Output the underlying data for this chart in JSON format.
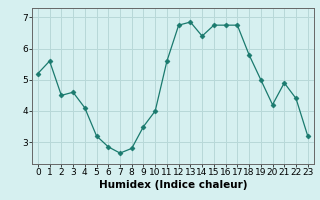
{
  "x": [
    0,
    1,
    2,
    3,
    4,
    5,
    6,
    7,
    8,
    9,
    10,
    11,
    12,
    13,
    14,
    15,
    16,
    17,
    18,
    19,
    20,
    21,
    22,
    23
  ],
  "y": [
    5.2,
    5.6,
    4.5,
    4.6,
    4.1,
    3.2,
    2.85,
    2.65,
    2.8,
    3.5,
    4.0,
    5.6,
    6.75,
    6.85,
    6.4,
    6.75,
    6.75,
    6.75,
    5.8,
    5.0,
    4.2,
    4.9,
    4.4,
    3.2
  ],
  "line_color": "#1a7a6e",
  "marker": "D",
  "marker_size": 2.5,
  "bg_color": "#d6f0f0",
  "grid_color": "#b8d8d8",
  "xlabel": "Humidex (Indice chaleur)",
  "xlim": [
    -0.5,
    23.5
  ],
  "ylim": [
    2.3,
    7.3
  ],
  "yticks": [
    3,
    4,
    5,
    6,
    7
  ],
  "xticks": [
    0,
    1,
    2,
    3,
    4,
    5,
    6,
    7,
    8,
    9,
    10,
    11,
    12,
    13,
    14,
    15,
    16,
    17,
    18,
    19,
    20,
    21,
    22,
    23
  ],
  "tick_fontsize": 6.5,
  "xlabel_fontsize": 7.5
}
